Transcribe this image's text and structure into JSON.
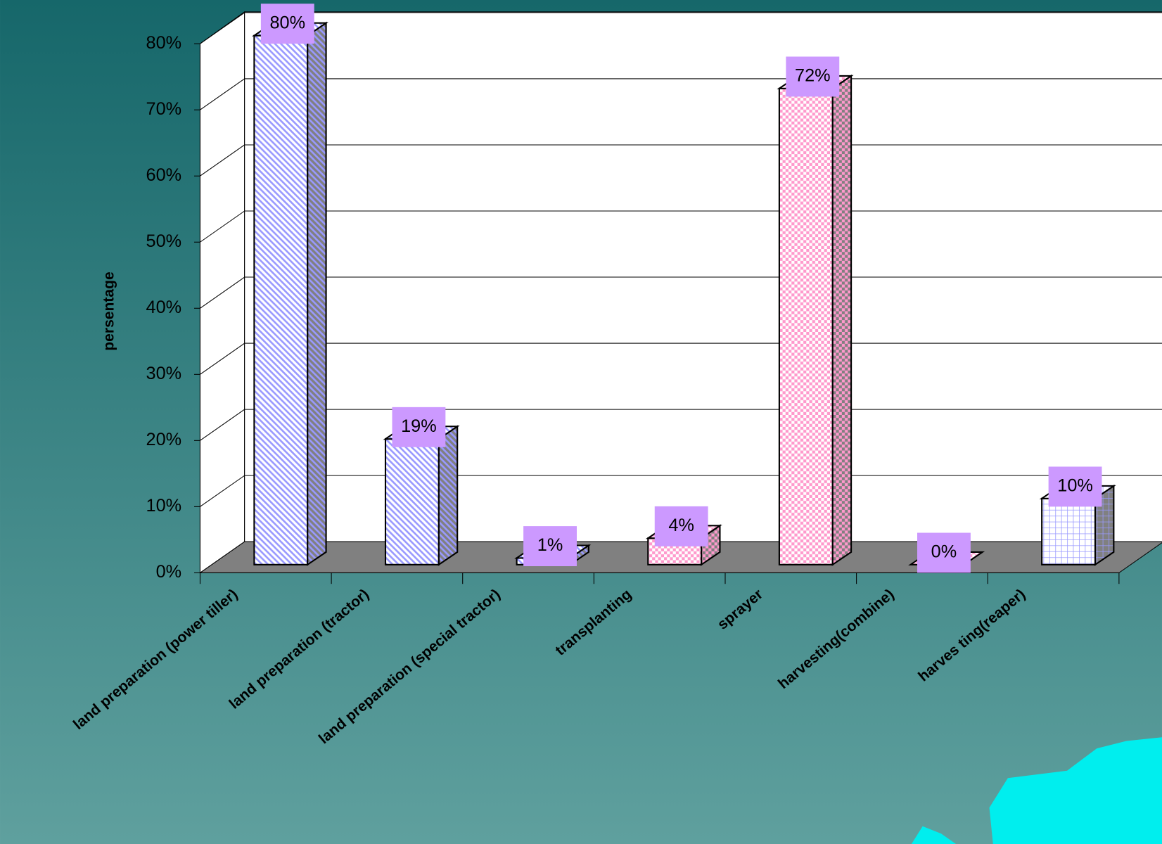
{
  "chart_data": {
    "type": "bar3d",
    "y_label": "persentage",
    "categories": [
      "land preparation (power tiller)",
      "land preparation (tractor)",
      "land preparation (special tractor)",
      "transplanting",
      "sprayer",
      "harvesting(combine)",
      "harves ting(reaper)"
    ],
    "values": [
      80,
      19,
      1,
      4,
      72,
      0,
      10
    ],
    "value_labels": [
      "80%",
      "19%",
      "1%",
      "4%",
      "72%",
      "0%",
      "10%"
    ],
    "colors": [
      "#9999ff",
      "#9999ff",
      "#9999ff",
      "#ff99cc",
      "#ff99cc",
      "#ff99cc",
      "#9999ff"
    ],
    "label_color": "#cc99ff",
    "ylim": [
      0,
      80
    ],
    "yticks": [
      {
        "value": 0,
        "label": "0%"
      },
      {
        "value": 10,
        "label": "10%"
      },
      {
        "value": 20,
        "label": "20%"
      },
      {
        "value": 30,
        "label": "30%"
      },
      {
        "value": 40,
        "label": "40%"
      },
      {
        "value": 50,
        "label": "50%"
      },
      {
        "value": 60,
        "label": "60%"
      },
      {
        "value": 70,
        "label": "70%"
      },
      {
        "value": 80,
        "label": "80%"
      }
    ],
    "grid": true
  }
}
